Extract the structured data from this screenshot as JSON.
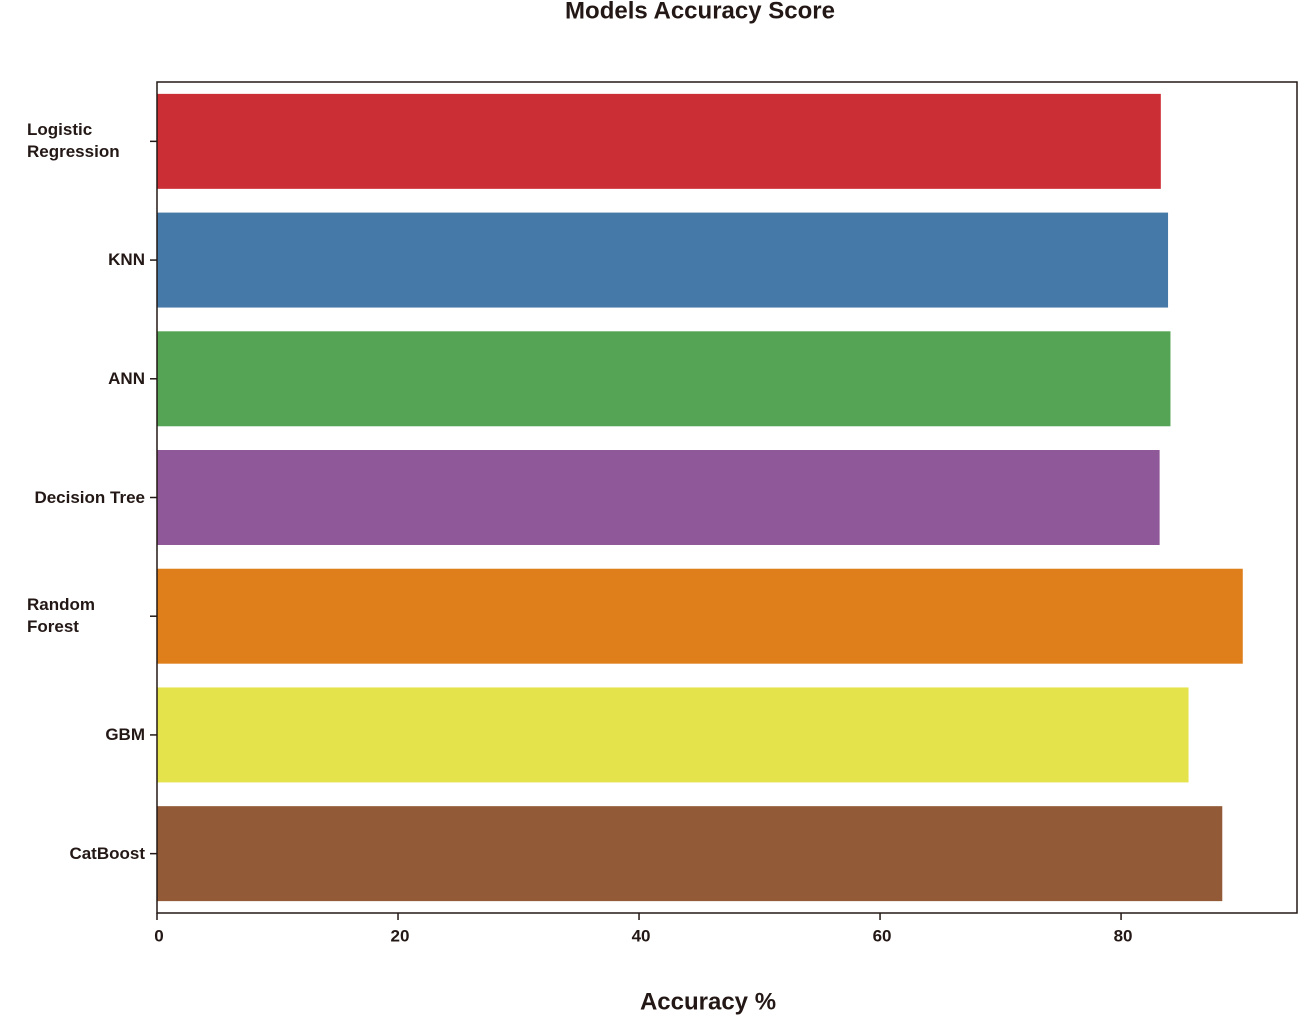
{
  "chart_data": {
    "type": "barh",
    "title": "Models Accuracy Score",
    "xlabel": "Accuracy %",
    "categories": [
      "Logistic Regression",
      "KNN",
      "ANN",
      "Decision Tree",
      "Random Forest",
      "GBM",
      "CatBoost"
    ],
    "values": [
      83.3,
      83.9,
      84.1,
      83.2,
      90.1,
      85.6,
      88.4
    ],
    "colors": [
      "#cb2f35",
      "#4579a8",
      "#55a355",
      "#8f5898",
      "#df7f1c",
      "#e5e34c",
      "#935a37"
    ],
    "xlim": [
      0,
      94.6
    ],
    "xticks": [
      0,
      20,
      40,
      60,
      80
    ],
    "grid": false
  }
}
